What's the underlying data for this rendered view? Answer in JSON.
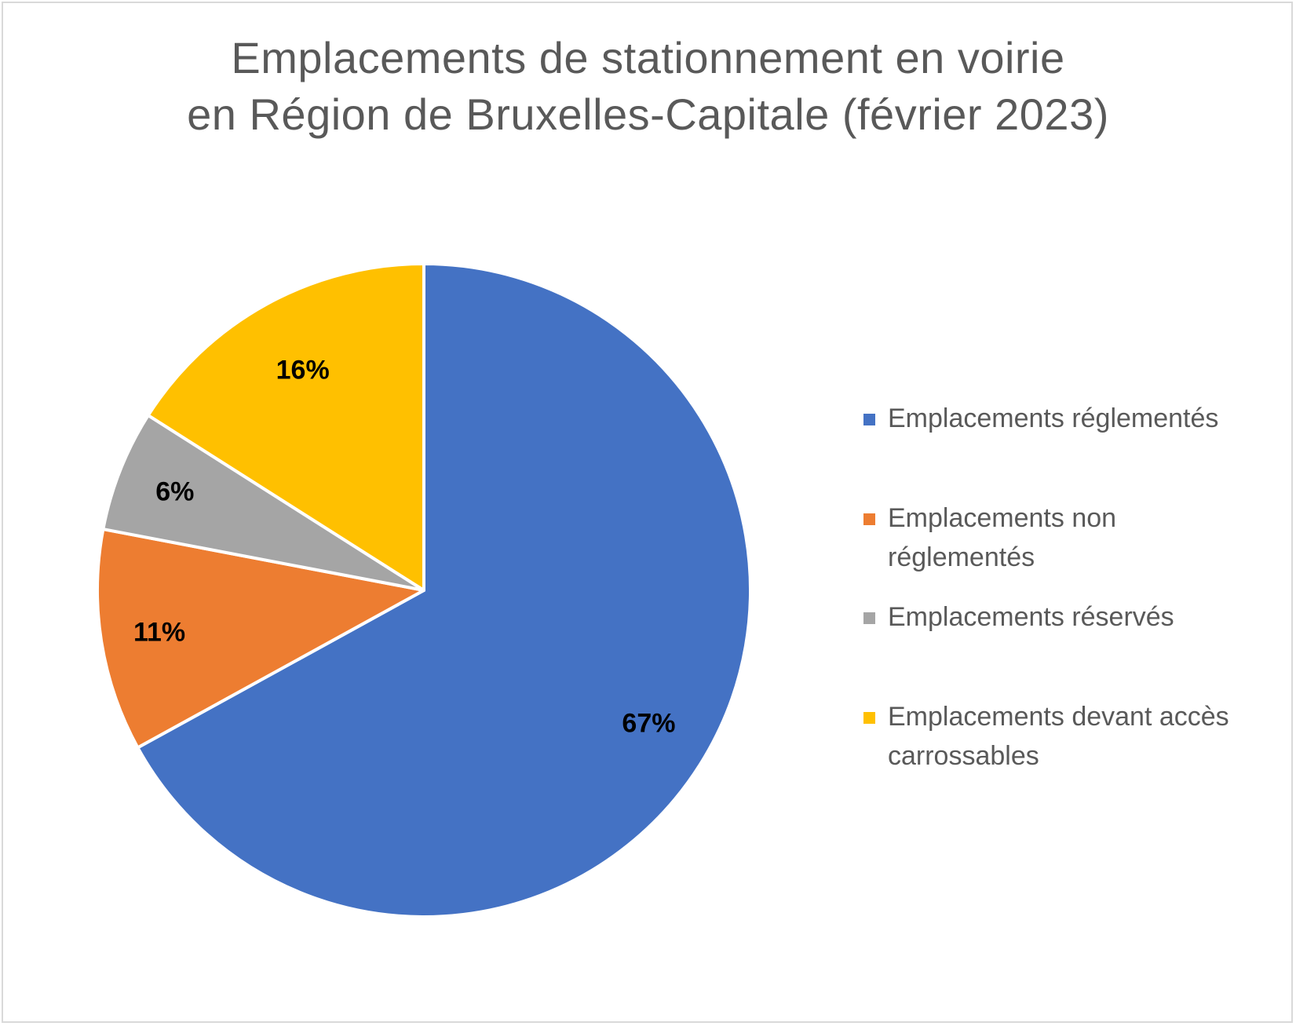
{
  "chart_data": {
    "type": "pie",
    "title": [
      "Emplacements de stationnement en voirie",
      "en Région de Bruxelles-Capitale (février 2023)"
    ],
    "categories": [
      "Emplacements réglementés",
      "Emplacements non réglementés",
      "Emplacements réservés",
      "Emplacements devant accès carrossables"
    ],
    "values": [
      67,
      11,
      6,
      16
    ],
    "labels": [
      "67%",
      "11%",
      "6%",
      "16%"
    ],
    "colors": [
      "#4472C4",
      "#ED7D31",
      "#A5A5A5",
      "#FFC000"
    ],
    "legend_position": "right"
  },
  "legend": {
    "items": [
      {
        "label": "Emplacements réglementés",
        "color": "#4472C4"
      },
      {
        "label": "Emplacements non réglementés",
        "color": "#ED7D31"
      },
      {
        "label": "Emplacements réservés",
        "color": "#A5A5A5"
      },
      {
        "label": "Emplacements devant accès carrossables",
        "color": "#FFC000"
      }
    ]
  }
}
